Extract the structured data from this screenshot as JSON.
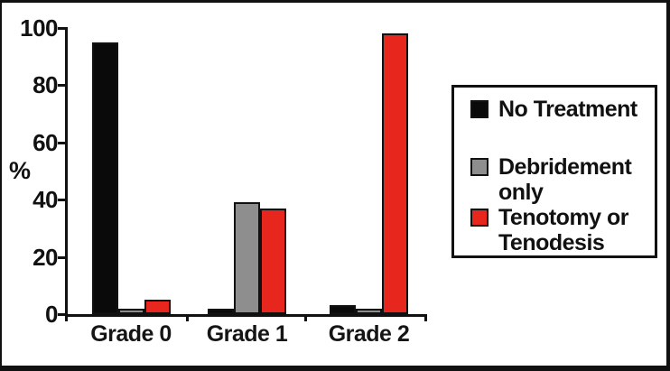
{
  "chart_data": {
    "type": "bar",
    "title": "",
    "ylabel": "%",
    "ylim": [
      0,
      100
    ],
    "yticks": [
      0,
      20,
      40,
      60,
      80,
      100
    ],
    "categories": [
      "Grade 0",
      "Grade 1",
      "Grade 2"
    ],
    "series": [
      {
        "name": "No Treatment",
        "color": "#0a0a0a",
        "values": [
          95,
          2,
          3
        ]
      },
      {
        "name": "Debridement only",
        "color": "#8e8e8e",
        "values": [
          2,
          39,
          2
        ]
      },
      {
        "name": "Tenotomy or Tenodesis",
        "color": "#e7271d",
        "values": [
          5,
          37,
          98
        ]
      }
    ],
    "grid": false,
    "legend_position": "right",
    "axis_color": "#111111",
    "bar_outline_color": "#111111",
    "legend": {
      "items": [
        {
          "label": "No Treatment",
          "color": "#0a0a0a"
        },
        {
          "label": "Debridement\nonly",
          "color": "#8e8e8e"
        },
        {
          "label": "Tenotomy or\nTenodesis",
          "color": "#e7271d"
        }
      ]
    }
  }
}
